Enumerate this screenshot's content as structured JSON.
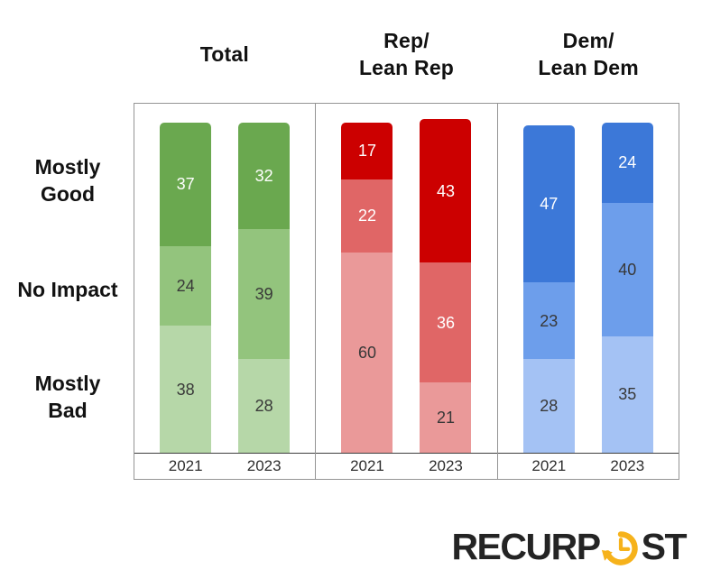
{
  "chart_data": {
    "type": "bar",
    "stacked": true,
    "grid": false,
    "legend_position": "left-row-labels",
    "categories": [
      "2021",
      "2023"
    ],
    "row_labels": [
      "Mostly\nGood",
      "No Impact",
      "Mostly\nBad"
    ],
    "value_unit": "percent",
    "panels": [
      {
        "id": "total",
        "title": "Total",
        "segment_colors": [
          "#6aa84f",
          "#93c47d",
          "#b6d7a8"
        ],
        "bars": [
          {
            "category": "2021",
            "segments": [
              {
                "label": "Mostly Good",
                "value": 37,
                "color": "#6aa84f",
                "text_color": "#ffffff"
              },
              {
                "label": "No Impact",
                "value": 24,
                "color": "#93c47d",
                "text_color": "#383838"
              },
              {
                "label": "Mostly Bad",
                "value": 38,
                "color": "#b6d7a8",
                "text_color": "#383838"
              }
            ]
          },
          {
            "category": "2023",
            "segments": [
              {
                "label": "Mostly Good",
                "value": 32,
                "color": "#6aa84f",
                "text_color": "#ffffff"
              },
              {
                "label": "No Impact",
                "value": 39,
                "color": "#93c47d",
                "text_color": "#383838"
              },
              {
                "label": "Mostly Bad",
                "value": 28,
                "color": "#b6d7a8",
                "text_color": "#383838"
              }
            ]
          }
        ]
      },
      {
        "id": "rep",
        "title": "Rep/\nLean Rep",
        "segment_colors": [
          "#cc0000",
          "#e06666",
          "#ea9999"
        ],
        "bars": [
          {
            "category": "2021",
            "segments": [
              {
                "label": "Mostly Good",
                "value": 17,
                "color": "#cc0000",
                "text_color": "#ffffff"
              },
              {
                "label": "No Impact",
                "value": 22,
                "color": "#e06666",
                "text_color": "#ffffff"
              },
              {
                "label": "Mostly Bad",
                "value": 60,
                "color": "#ea9999",
                "text_color": "#383838"
              }
            ]
          },
          {
            "category": "2023",
            "segments": [
              {
                "label": "Mostly Good",
                "value": 43,
                "color": "#cc0000",
                "text_color": "#ffffff"
              },
              {
                "label": "No Impact",
                "value": 36,
                "color": "#e06666",
                "text_color": "#ffffff"
              },
              {
                "label": "Mostly Bad",
                "value": 21,
                "color": "#ea9999",
                "text_color": "#383838"
              }
            ]
          }
        ]
      },
      {
        "id": "dem",
        "title": "Dem/\nLean Dem",
        "segment_colors": [
          "#3c78d8",
          "#6d9eeb",
          "#a4c2f4"
        ],
        "bars": [
          {
            "category": "2021",
            "segments": [
              {
                "label": "Mostly Good",
                "value": 47,
                "color": "#3c78d8",
                "text_color": "#ffffff"
              },
              {
                "label": "No Impact",
                "value": 23,
                "color": "#6d9eeb",
                "text_color": "#383838"
              },
              {
                "label": "Mostly Bad",
                "value": 28,
                "color": "#a4c2f4",
                "text_color": "#383838"
              }
            ]
          },
          {
            "category": "2023",
            "segments": [
              {
                "label": "Mostly Good",
                "value": 24,
                "color": "#3c78d8",
                "text_color": "#ffffff"
              },
              {
                "label": "No Impact",
                "value": 40,
                "color": "#6d9eeb",
                "text_color": "#383838"
              },
              {
                "label": "Mostly Bad",
                "value": 35,
                "color": "#a4c2f4",
                "text_color": "#383838"
              }
            ]
          }
        ]
      }
    ]
  },
  "logo": {
    "text_before": "RECURP",
    "text_after": "ST",
    "text_color": "#242424",
    "accent_color": "#f6b21b",
    "icon": "clock-history-icon"
  }
}
